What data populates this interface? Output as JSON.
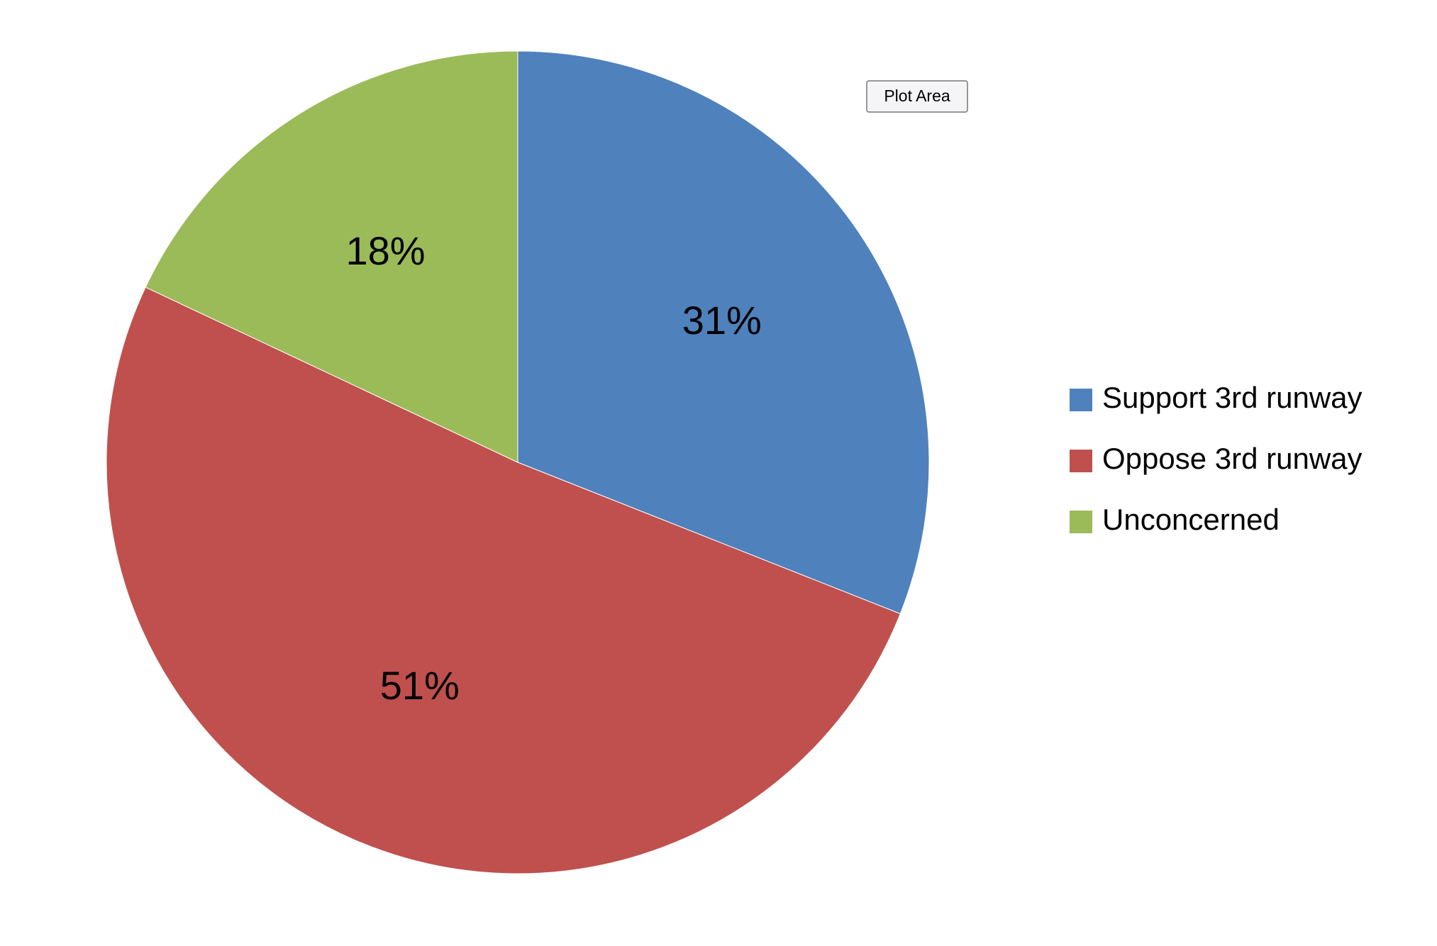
{
  "chart_data": {
    "type": "pie",
    "categories": [
      "Support 3rd runway",
      "Oppose 3rd runway",
      "Unconcerned"
    ],
    "values": [
      31,
      51,
      18
    ],
    "value_labels": [
      "31%",
      "51%",
      "18%"
    ],
    "colors": [
      "#4f81bd",
      "#c0504d",
      "#9bbb59"
    ],
    "legend": "right",
    "tooltip": "Plot Area"
  }
}
